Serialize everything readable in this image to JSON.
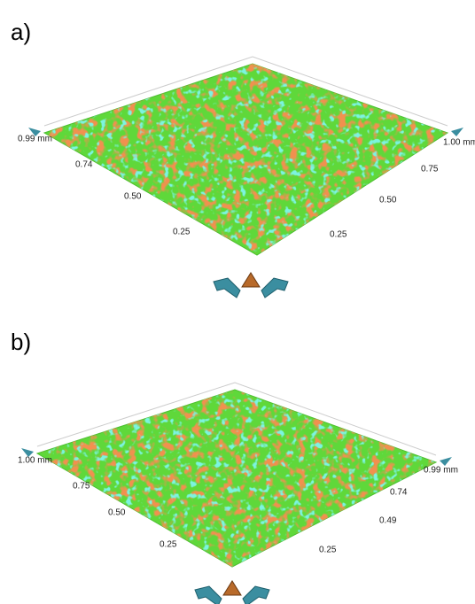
{
  "panels": [
    {
      "label": "a)",
      "left_axis": [
        "0.99 mm",
        "0.74",
        "0.50",
        "0.25"
      ],
      "right_axis": [
        "1.00 mm",
        "0.75",
        "0.50",
        "0.25"
      ]
    },
    {
      "label": "b)",
      "left_axis": [
        "1.00 mm",
        "0.75",
        "0.50",
        "0.25"
      ],
      "right_axis": [
        "0.99 mm",
        "0.74",
        "0.49",
        "0.25"
      ]
    }
  ]
}
